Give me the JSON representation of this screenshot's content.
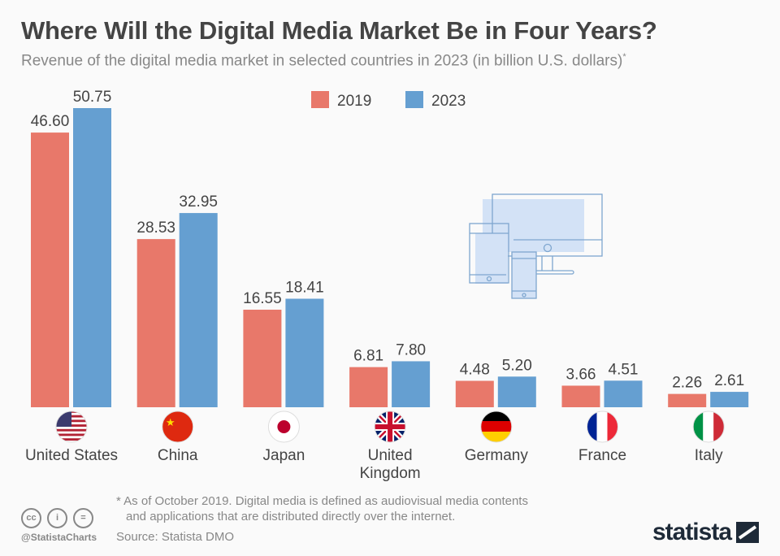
{
  "title": "Where Will the Digital Media Market Be in Four Years?",
  "subtitle": "Revenue of the digital media market in selected countries in 2023 (in billion U.S. dollars)",
  "subtitle_mark": "*",
  "chart_data": {
    "type": "bar",
    "title": "Where Will the Digital Media Market Be in Four Years?",
    "categories": [
      "United States",
      "China",
      "Japan",
      "United Kingdom",
      "Germany",
      "France",
      "Italy"
    ],
    "series": [
      {
        "name": "2019",
        "color": "#e8786a",
        "values": [
          46.6,
          28.53,
          16.55,
          6.81,
          4.48,
          3.66,
          2.26
        ]
      },
      {
        "name": "2023",
        "color": "#659fd1",
        "values": [
          50.75,
          32.95,
          18.41,
          7.8,
          5.2,
          4.51,
          2.61
        ]
      }
    ],
    "value_labels": [
      [
        "46.60",
        "28.53",
        "16.55",
        "6.81",
        "4.48",
        "3.66",
        "2.26"
      ],
      [
        "50.75",
        "32.95",
        "18.41",
        "7.80",
        "5.20",
        "4.51",
        "2.61"
      ]
    ],
    "category_labels": [
      [
        "United States"
      ],
      [
        "China"
      ],
      [
        "Japan"
      ],
      [
        "United",
        "Kingdom"
      ],
      [
        "Germany"
      ],
      [
        "France"
      ],
      [
        "Italy"
      ]
    ],
    "flags": [
      "us-flag",
      "china-flag",
      "japan-flag",
      "uk-flag",
      "germany-flag",
      "france-flag",
      "italy-flag"
    ],
    "ylim": [
      0,
      52
    ],
    "grid": false,
    "legend_position": "top-center"
  },
  "footer": {
    "note_line1": "* As of October 2019. Digital media is defined as audiovisual media contents",
    "note_line2": "and applications that are distributed directly over the internet.",
    "source": "Source: Statista DMO",
    "handle": "@StatistaCharts",
    "brand": "statista"
  }
}
